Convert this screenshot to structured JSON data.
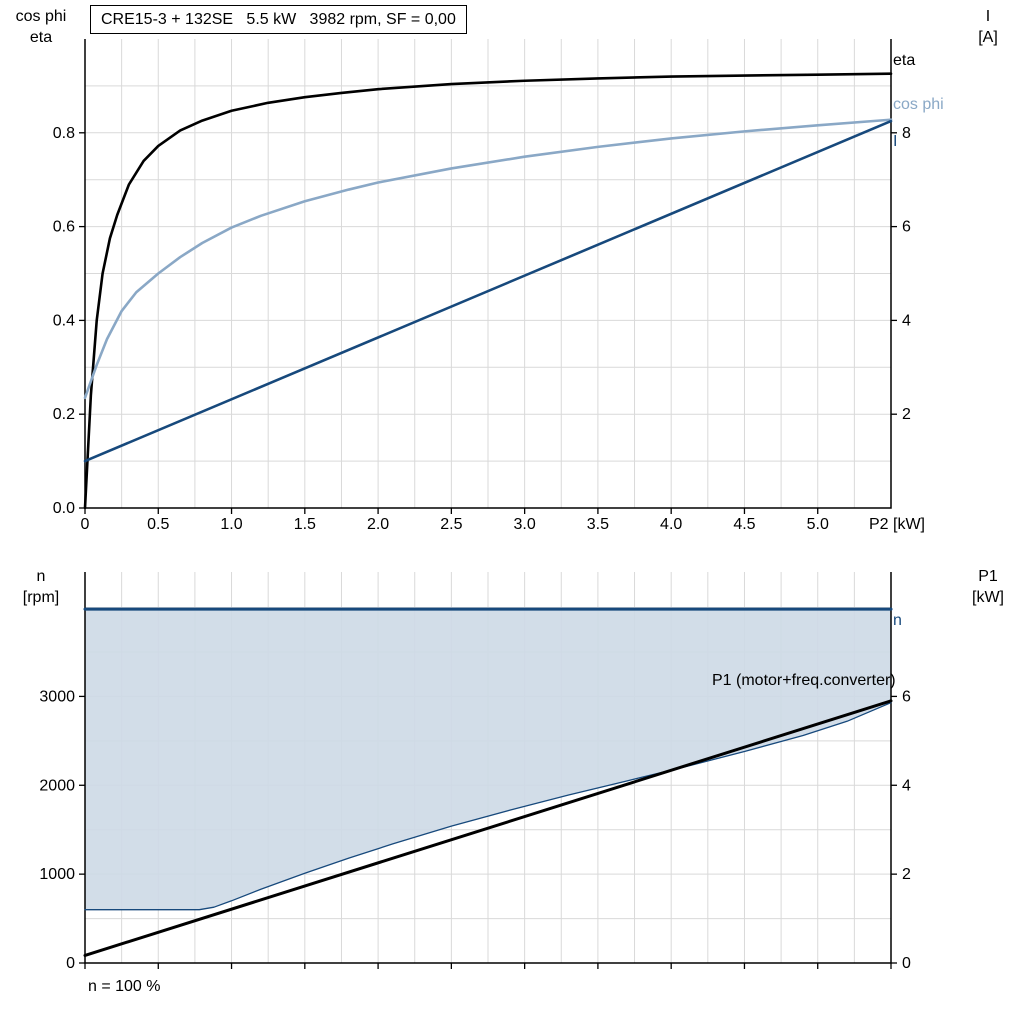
{
  "style": {
    "grid_color": "#d9d9d9",
    "axis_color": "#000000",
    "background": "#ffffff",
    "eta_color": "#000000",
    "cosphi_color": "#8aa8c6",
    "current_color": "#17497c",
    "fill_color": "#cdd9e5"
  },
  "chart_data": [
    {
      "type": "line",
      "title": "CRE15-3 + 132SE   5.5 kW   3982 rpm, SF = 0,00",
      "x": {
        "label": "P2 [kW]",
        "min": 0,
        "max": 5.5,
        "grid_step": 0.25,
        "tick_values": [
          0,
          0.5,
          1,
          1.5,
          2,
          2.5,
          3,
          3.5,
          4,
          4.5,
          5
        ],
        "tick_labels": [
          "0",
          "0.5",
          "1.0",
          "1.5",
          "2.0",
          "2.5",
          "3.0",
          "3.5",
          "4.0",
          "4.5",
          "5.0"
        ]
      },
      "y_left": {
        "label1": "cos phi",
        "label2": "eta",
        "min": 0,
        "max": 1.0,
        "grid_step": 0.1,
        "tick_values": [
          0,
          0.2,
          0.4,
          0.6,
          0.8
        ],
        "tick_labels": [
          "0.0",
          "0.2",
          "0.4",
          "0.6",
          "0.8"
        ]
      },
      "y_right": {
        "label1": "I",
        "label2": "[A]",
        "min": 0,
        "max": 10,
        "tick_values": [
          2,
          4,
          6,
          8
        ],
        "tick_labels": [
          "2",
          "4",
          "6",
          "8"
        ]
      },
      "series": [
        {
          "name": "eta",
          "label": "eta",
          "axis": "left",
          "color": "#000000",
          "width": 2.6,
          "points": [
            [
              0,
              0
            ],
            [
              0.04,
              0.24
            ],
            [
              0.08,
              0.4
            ],
            [
              0.12,
              0.5
            ],
            [
              0.17,
              0.575
            ],
            [
              0.22,
              0.625
            ],
            [
              0.3,
              0.69
            ],
            [
              0.4,
              0.74
            ],
            [
              0.5,
              0.772
            ],
            [
              0.65,
              0.805
            ],
            [
              0.8,
              0.826
            ],
            [
              1.0,
              0.847
            ],
            [
              1.25,
              0.864
            ],
            [
              1.5,
              0.876
            ],
            [
              1.75,
              0.885
            ],
            [
              2.0,
              0.893
            ],
            [
              2.5,
              0.904
            ],
            [
              3.0,
              0.911
            ],
            [
              3.5,
              0.916
            ],
            [
              4.0,
              0.92
            ],
            [
              4.5,
              0.922
            ],
            [
              5.0,
              0.924
            ],
            [
              5.5,
              0.926
            ]
          ]
        },
        {
          "name": "cos phi",
          "label": "cos phi",
          "axis": "left",
          "color": "#8aa8c6",
          "width": 2.6,
          "points": [
            [
              0,
              0.235
            ],
            [
              0.08,
              0.305
            ],
            [
              0.15,
              0.36
            ],
            [
              0.25,
              0.42
            ],
            [
              0.35,
              0.46
            ],
            [
              0.5,
              0.5
            ],
            [
              0.65,
              0.535
            ],
            [
              0.8,
              0.565
            ],
            [
              1.0,
              0.598
            ],
            [
              1.2,
              0.623
            ],
            [
              1.5,
              0.654
            ],
            [
              1.8,
              0.679
            ],
            [
              2.0,
              0.694
            ],
            [
              2.5,
              0.724
            ],
            [
              3.0,
              0.749
            ],
            [
              3.5,
              0.77
            ],
            [
              4.0,
              0.788
            ],
            [
              4.5,
              0.803
            ],
            [
              5.0,
              0.816
            ],
            [
              5.5,
              0.828
            ]
          ]
        },
        {
          "name": "I",
          "label": "I",
          "axis": "right",
          "color": "#17497c",
          "width": 2.6,
          "points": [
            [
              0,
              1.0
            ],
            [
              5.5,
              8.25
            ]
          ]
        }
      ]
    },
    {
      "type": "line",
      "x": {
        "min": 0,
        "max": 5.5,
        "grid_step": 0.25,
        "tick_values": [
          0,
          0.5,
          1,
          1.5,
          2,
          2.5,
          3,
          3.5,
          4,
          4.5,
          5,
          5.5
        ]
      },
      "y_left": {
        "label1": "n",
        "label2": "[rpm]",
        "min": 0,
        "max": 4400,
        "grid_step": 500,
        "tick_values": [
          0,
          1000,
          2000,
          3000
        ],
        "tick_labels": [
          "0",
          "1000",
          "2000",
          "3000"
        ]
      },
      "y_right": {
        "label1": "P1",
        "label2": "[kW]",
        "min": 0,
        "max": 8.8,
        "tick_values": [
          0,
          2,
          4,
          6
        ],
        "tick_labels": [
          "0",
          "2",
          "4",
          "6"
        ]
      },
      "area": {
        "fill": "#cdd9e5",
        "opacity": 0.9,
        "upper": [
          [
            0,
            3982
          ],
          [
            5.5,
            3982
          ]
        ],
        "lower": [
          [
            0,
            600
          ],
          [
            0.78,
            600
          ],
          [
            0.88,
            628
          ],
          [
            1.0,
            700
          ],
          [
            1.2,
            830
          ],
          [
            1.5,
            1010
          ],
          [
            1.8,
            1180
          ],
          [
            2.1,
            1340
          ],
          [
            2.5,
            1540
          ],
          [
            2.9,
            1720
          ],
          [
            3.3,
            1890
          ],
          [
            3.7,
            2050
          ],
          [
            4.1,
            2210
          ],
          [
            4.5,
            2380
          ],
          [
            4.9,
            2560
          ],
          [
            5.2,
            2720
          ],
          [
            5.5,
            2930
          ]
        ]
      },
      "series": [
        {
          "name": "n",
          "label": "n",
          "axis": "left",
          "color": "#17497c",
          "width": 3,
          "points": [
            [
              0,
              3982
            ],
            [
              5.5,
              3982
            ]
          ]
        },
        {
          "name": "speed boundary",
          "axis": "left",
          "color": "#17497c",
          "width": 1.3,
          "points": [
            [
              0,
              600
            ],
            [
              0.78,
              600
            ],
            [
              0.88,
              628
            ],
            [
              1.0,
              700
            ],
            [
              1.2,
              830
            ],
            [
              1.5,
              1010
            ],
            [
              1.8,
              1180
            ],
            [
              2.1,
              1340
            ],
            [
              2.5,
              1540
            ],
            [
              2.9,
              1720
            ],
            [
              3.3,
              1890
            ],
            [
              3.7,
              2050
            ],
            [
              4.1,
              2210
            ],
            [
              4.5,
              2380
            ],
            [
              4.9,
              2560
            ],
            [
              5.2,
              2720
            ],
            [
              5.5,
              2930
            ]
          ]
        },
        {
          "name": "P1",
          "label": "P1 (motor+freq.converter)",
          "axis": "right",
          "color": "#000000",
          "width": 3,
          "points": [
            [
              0,
              0.17
            ],
            [
              5.5,
              5.9
            ]
          ]
        }
      ],
      "footnote": "n = 100 %"
    }
  ]
}
